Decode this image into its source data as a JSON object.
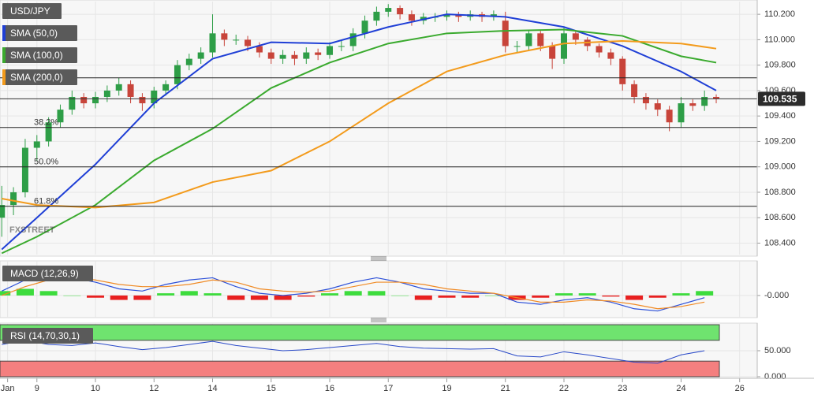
{
  "chart_data": [
    {
      "type": "candlestick",
      "title": "USD/JPY",
      "x": [
        -0.6,
        -0.4,
        -0.2,
        0,
        0.2,
        0.4,
        0.6,
        0.8,
        1,
        1.2,
        1.4,
        1.6,
        1.8,
        2,
        2.2,
        2.4,
        2.6,
        2.8,
        3,
        3.2,
        3.4,
        3.6,
        3.8,
        4,
        4.2,
        4.4,
        4.6,
        4.8,
        5,
        5.2,
        5.4,
        5.6,
        5.8,
        6,
        6.2,
        6.4,
        6.6,
        6.8,
        7,
        7.2,
        7.4,
        7.6,
        7.8,
        8,
        8.2,
        8.4,
        8.6,
        8.8,
        9,
        9.2,
        9.4,
        9.6,
        9.8,
        10,
        10.2,
        10.4,
        10.6,
        10.8,
        11,
        11.2,
        11.4,
        11.6
      ],
      "open": [
        108.6,
        108.7,
        108.8,
        109.15,
        109.2,
        109.35,
        109.45,
        109.55,
        109.5,
        109.55,
        109.6,
        109.65,
        109.55,
        109.5,
        109.6,
        109.65,
        109.8,
        109.85,
        109.9,
        110.05,
        110,
        110,
        109.95,
        109.9,
        109.85,
        109.88,
        109.85,
        109.9,
        109.88,
        109.95,
        109.95,
        110.05,
        110.15,
        110.22,
        110.25,
        110.2,
        110.15,
        110.18,
        110.18,
        110.2,
        110.18,
        110.2,
        110.18,
        110.15,
        109.95,
        109.95,
        110.05,
        109.95,
        109.85,
        110.05,
        110,
        109.95,
        109.9,
        109.85,
        109.65,
        109.55,
        109.5,
        109.45,
        109.35,
        109.5,
        109.48,
        109.55
      ],
      "high": [
        108.85,
        108.84,
        109.22,
        109.25,
        109.39,
        109.49,
        109.6,
        109.58,
        109.59,
        109.64,
        109.7,
        109.68,
        109.58,
        109.63,
        109.68,
        109.84,
        109.89,
        109.94,
        110.2,
        110.08,
        110.04,
        110.03,
        109.98,
        109.93,
        109.92,
        109.91,
        109.94,
        109.93,
        109.98,
        109.99,
        110.09,
        110.19,
        110.26,
        110.28,
        110.27,
        110.23,
        110.21,
        110.21,
        110.23,
        110.22,
        110.23,
        110.22,
        110.23,
        110.22,
        109.99,
        110.08,
        110.07,
        109.98,
        110.1,
        110.07,
        110.02,
        109.97,
        109.93,
        109.87,
        109.68,
        109.58,
        109.53,
        109.48,
        109.55,
        109.53,
        109.6,
        109.57
      ],
      "low": [
        108.45,
        108.62,
        108.76,
        109.05,
        109.16,
        109.31,
        109.41,
        109.46,
        109.46,
        109.51,
        109.56,
        109.5,
        109.44,
        109.46,
        109.56,
        109.61,
        109.76,
        109.81,
        109.86,
        109.95,
        109.96,
        109.91,
        109.86,
        109.81,
        109.81,
        109.8,
        109.81,
        109.84,
        109.85,
        109.91,
        109.91,
        110.01,
        110.11,
        110.18,
        110.16,
        110.11,
        110.12,
        110.14,
        110.15,
        110.14,
        110.15,
        110.14,
        110.15,
        109.9,
        109.9,
        109.91,
        109.91,
        109.77,
        109.81,
        109.96,
        109.91,
        109.86,
        109.8,
        109.6,
        109.5,
        109.45,
        109.4,
        109.28,
        109.31,
        109.44,
        109.44,
        109.5
      ],
      "close": [
        108.7,
        108.8,
        109.15,
        109.2,
        109.35,
        109.45,
        109.55,
        109.5,
        109.55,
        109.6,
        109.65,
        109.55,
        109.5,
        109.6,
        109.65,
        109.8,
        109.85,
        109.9,
        110.05,
        110,
        110,
        109.95,
        109.9,
        109.85,
        109.88,
        109.85,
        109.9,
        109.88,
        109.95,
        109.95,
        110.05,
        110.15,
        110.22,
        110.25,
        110.2,
        110.15,
        110.18,
        110.18,
        110.2,
        110.18,
        110.2,
        110.18,
        110.2,
        109.95,
        109.95,
        110.05,
        109.95,
        109.85,
        110.05,
        110,
        109.95,
        109.9,
        109.85,
        109.65,
        109.55,
        109.5,
        109.45,
        109.35,
        109.5,
        109.48,
        109.55,
        109.535
      ],
      "up_color": "#2e9e47",
      "down_color": "#c8443a",
      "series": [
        {
          "name": "SMA (50,0)",
          "color": "#1f3fd6",
          "x": [
            -0.6,
            0,
            1,
            2,
            3,
            4,
            5,
            6,
            7,
            8,
            9,
            10,
            11,
            11.6
          ],
          "values": [
            108.35,
            108.6,
            109.02,
            109.5,
            109.85,
            109.98,
            109.97,
            110.1,
            110.2,
            110.18,
            110.1,
            109.95,
            109.75,
            109.6
          ]
        },
        {
          "name": "SMA (100,0)",
          "color": "#3aaa2e",
          "x": [
            -0.6,
            0,
            1,
            2,
            3,
            4,
            5,
            6,
            7,
            8,
            9,
            10,
            11,
            11.6
          ],
          "values": [
            108.32,
            108.45,
            108.7,
            109.05,
            109.3,
            109.62,
            109.82,
            109.97,
            110.05,
            110.07,
            110.08,
            110.03,
            109.87,
            109.82
          ]
        },
        {
          "name": "SMA (200,0)",
          "color": "#f39b1c",
          "x": [
            -0.6,
            0,
            1,
            2,
            3,
            4,
            5,
            6,
            7,
            8,
            9,
            10,
            11,
            11.6
          ],
          "values": [
            108.75,
            108.7,
            108.68,
            108.72,
            108.88,
            108.97,
            109.2,
            109.5,
            109.75,
            109.88,
            109.97,
            109.99,
            109.97,
            109.93
          ]
        }
      ],
      "levels": [
        {
          "label": "38.2%",
          "value": 109.31
        },
        {
          "label": "50.0%",
          "value": 109.0
        },
        {
          "label": "61.8%",
          "value": 108.69
        }
      ],
      "horizontal_lines": [
        109.7
      ],
      "watermark": "FXSTREET",
      "xlim": [
        -0.63,
        12.3
      ],
      "xticks": [
        {
          "value": -0.5,
          "label": "Jan"
        },
        {
          "value": 0,
          "label": "9"
        },
        {
          "value": 1,
          "label": "10"
        },
        {
          "value": 2,
          "label": "12"
        },
        {
          "value": 3,
          "label": "14"
        },
        {
          "value": 4,
          "label": "15"
        },
        {
          "value": 5,
          "label": "16"
        },
        {
          "value": 6,
          "label": "17"
        },
        {
          "value": 7,
          "label": "19"
        },
        {
          "value": 8,
          "label": "21"
        },
        {
          "value": 9,
          "label": "22"
        },
        {
          "value": 10,
          "label": "23"
        },
        {
          "value": 11,
          "label": "24"
        },
        {
          "value": 12,
          "label": "26"
        }
      ],
      "ylim": [
        108.31,
        110.3
      ],
      "yticks": [
        {
          "value": 108.4,
          "label": "108.400"
        },
        {
          "value": 108.6,
          "label": "108.600"
        },
        {
          "value": 108.8,
          "label": "108.800"
        },
        {
          "value": 109.0,
          "label": "109.000"
        },
        {
          "value": 109.2,
          "label": "109.200"
        },
        {
          "value": 109.4,
          "label": "109.400"
        },
        {
          "value": 109.6,
          "label": "109.600"
        },
        {
          "value": 109.8,
          "label": "109.800"
        },
        {
          "value": 110.0,
          "label": "110.000"
        },
        {
          "value": 110.2,
          "label": "110.200"
        }
      ],
      "grid": true
    },
    {
      "type": "macd",
      "title": "MACD (12,26,9)",
      "x": [
        -0.6,
        -0.2,
        0.2,
        0.6,
        1,
        1.4,
        1.8,
        2.2,
        2.6,
        3,
        3.4,
        3.8,
        4.2,
        4.6,
        5,
        5.4,
        5.8,
        6.2,
        6.6,
        7,
        7.4,
        7.8,
        8.2,
        8.6,
        9,
        9.4,
        9.8,
        10.2,
        10.6,
        11,
        11.4
      ],
      "macd": [
        0.02,
        0.07,
        0.09,
        0.08,
        0.06,
        0.03,
        0.02,
        0.05,
        0.07,
        0.08,
        0.04,
        0.01,
        0,
        0.01,
        0.03,
        0.06,
        0.08,
        0.06,
        0.03,
        0.02,
        0.01,
        0.01,
        -0.03,
        -0.04,
        -0.02,
        -0.01,
        -0.03,
        -0.06,
        -0.07,
        -0.04,
        -0.01
      ],
      "signal": [
        0,
        0.04,
        0.07,
        0.08,
        0.07,
        0.05,
        0.04,
        0.04,
        0.05,
        0.07,
        0.06,
        0.03,
        0.02,
        0.015,
        0.02,
        0.04,
        0.06,
        0.06,
        0.05,
        0.03,
        0.02,
        0.01,
        -0.01,
        -0.03,
        -0.03,
        -0.02,
        -0.025,
        -0.04,
        -0.06,
        -0.05,
        -0.03
      ],
      "histogram": [
        0.02,
        0.03,
        0.02,
        0,
        -0.01,
        -0.02,
        -0.02,
        0.01,
        0.02,
        0.01,
        -0.02,
        -0.02,
        -0.02,
        -0.005,
        0.01,
        0.02,
        0.02,
        0,
        -0.02,
        -0.01,
        -0.01,
        0,
        -0.02,
        -0.01,
        0.01,
        0.01,
        -0.005,
        -0.02,
        -0.01,
        0.01,
        0.02
      ],
      "macd_color": "#2b4fd8",
      "signal_color": "#f08a24",
      "hist_up_color": "#3ddc3d",
      "hist_down_color": "#e82020",
      "xlim": [
        -0.63,
        12.3
      ],
      "ylim": [
        -0.1,
        0.16
      ],
      "yticks": [
        {
          "value": 0,
          "label": "-0.000"
        }
      ]
    },
    {
      "type": "rsi",
      "title": "RSI (14,70,30,1)",
      "x": [
        -0.6,
        -0.2,
        0.2,
        0.6,
        1,
        1.4,
        1.8,
        2.2,
        2.6,
        3,
        3.4,
        3.8,
        4.2,
        4.6,
        5,
        5.4,
        5.8,
        6.2,
        6.6,
        7,
        7.4,
        7.8,
        8.2,
        8.6,
        9,
        9.4,
        9.8,
        10.2,
        10.6,
        11,
        11.4
      ],
      "values": [
        62,
        70,
        62,
        60,
        65,
        58,
        52,
        56,
        62,
        68,
        60,
        55,
        50,
        52,
        56,
        60,
        64,
        58,
        55,
        54,
        53,
        54,
        40,
        38,
        48,
        42,
        35,
        28,
        26,
        42,
        50
      ],
      "color": "#2848c8",
      "overbought": 70,
      "oversold": 30,
      "overbought_color": "#6fe36f",
      "oversold_color": "#f47f7f",
      "xlim": [
        -0.63,
        12.3
      ],
      "ylim": [
        0,
        100
      ],
      "yticks": [
        {
          "value": 50,
          "label": "50.000"
        },
        {
          "value": 0,
          "label": "0.000"
        }
      ]
    }
  ]
}
